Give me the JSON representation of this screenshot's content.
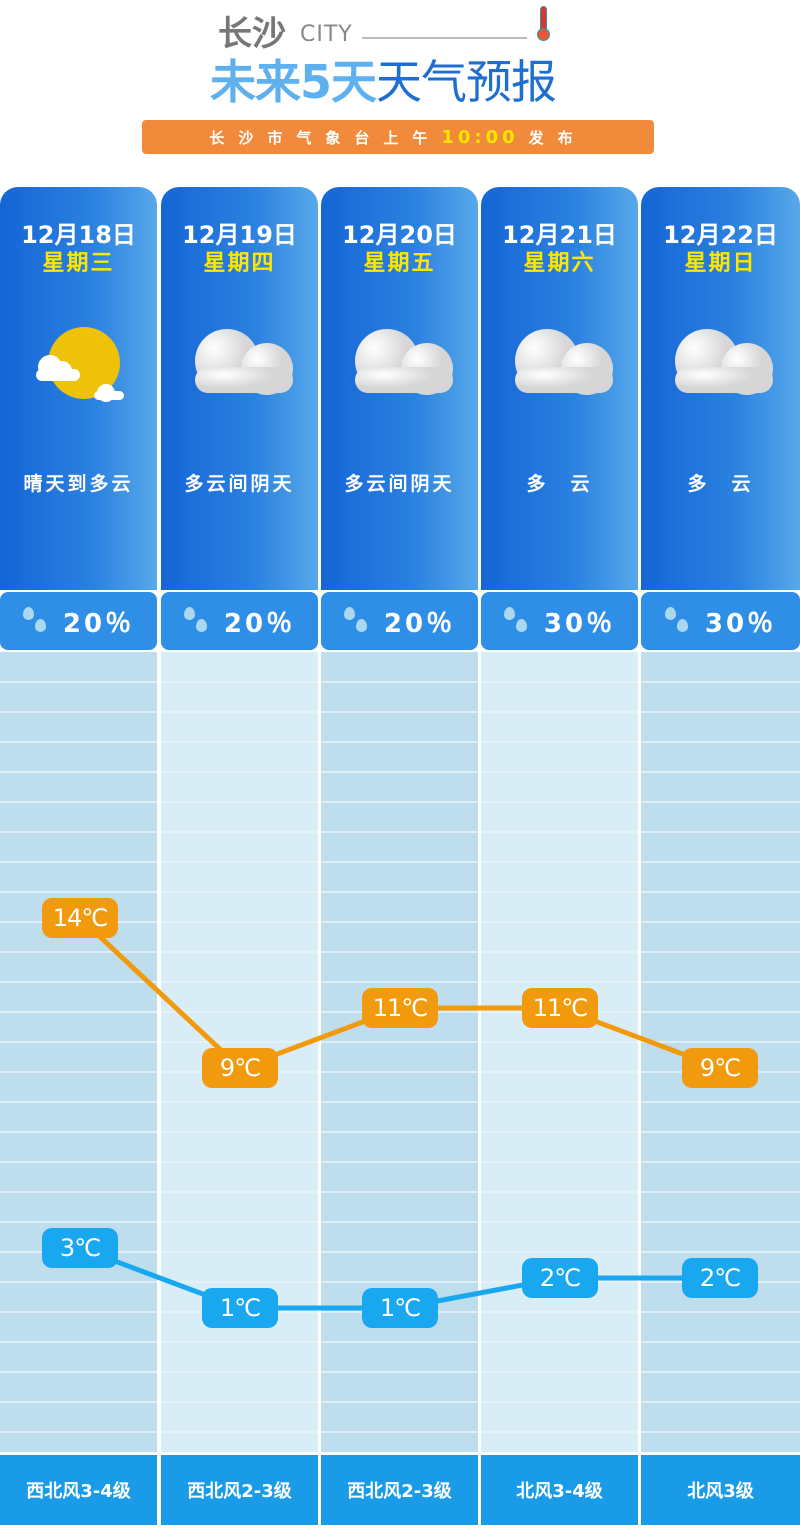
{
  "header": {
    "city_cn": "长沙",
    "city_en": "CITY",
    "title_a": "未来5天",
    "title_b": "天气预报",
    "banner_text": "长沙市气象台上午",
    "banner_time": "10:00",
    "banner_suffix": "发布"
  },
  "colors": {
    "high": "#f29a0e",
    "low": "#19a8f0",
    "card": "#2b82e0",
    "sun": "#efc20a"
  },
  "days": [
    {
      "date": "12月18日",
      "week": "星期三",
      "icon": "sun-cloud-icon",
      "desc": "晴天到多云",
      "rain": "20％",
      "high": 14,
      "high_label": "14℃",
      "low": 3,
      "low_label": "3℃",
      "wind": "西北风3-4级"
    },
    {
      "date": "12月19日",
      "week": "星期四",
      "icon": "cloud-icon",
      "desc": "多云间阴天",
      "rain": "20％",
      "high": 9,
      "high_label": "9℃",
      "low": 1,
      "low_label": "1℃",
      "wind": "西北风2-3级"
    },
    {
      "date": "12月20日",
      "week": "星期五",
      "icon": "cloud-icon",
      "desc": "多云间阴天",
      "rain": "20％",
      "high": 11,
      "high_label": "11℃",
      "low": 1,
      "low_label": "1℃",
      "wind": "西北风2-3级"
    },
    {
      "date": "12月21日",
      "week": "星期六",
      "icon": "cloud-icon",
      "desc": "多　云",
      "rain": "30％",
      "high": 11,
      "high_label": "11℃",
      "low": 2,
      "low_label": "2℃",
      "wind": "北风3-4级"
    },
    {
      "date": "12月22日",
      "week": "星期日",
      "icon": "cloud-icon",
      "desc": "多　云",
      "rain": "30％",
      "high": 9,
      "high_label": "9℃",
      "low": 2,
      "low_label": "2℃",
      "wind": "北风3级"
    }
  ]
}
